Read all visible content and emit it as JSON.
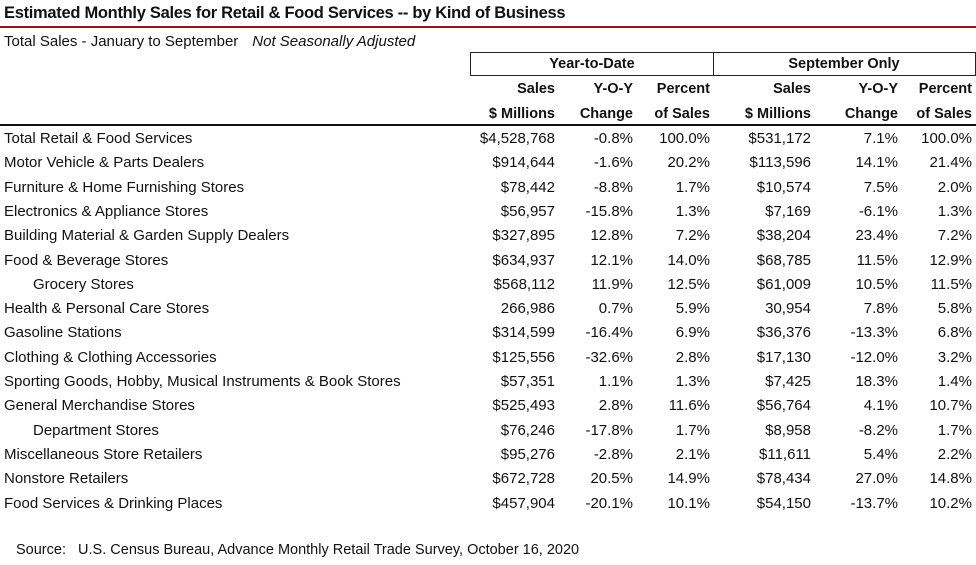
{
  "title": "Estimated Monthly Sales for Retail & Food Services -- by Kind of Business",
  "subtitle": "Total Sales - January to September",
  "subtitle_note": "Not Seasonally Adjusted",
  "colors": {
    "title_rule": "#8b1a1a"
  },
  "groups": [
    "Year-to-Date",
    "September Only"
  ],
  "headers": [
    {
      "line1": "Sales",
      "line2": "$ Millions"
    },
    {
      "line1": "Y-O-Y",
      "line2": "Change"
    },
    {
      "line1": "Percent",
      "line2": "of Sales"
    },
    {
      "line1": "Sales",
      "line2": "$ Millions"
    },
    {
      "line1": "Y-O-Y",
      "line2": "Change"
    },
    {
      "line1": "Percent",
      "line2": "of Sales"
    }
  ],
  "rows": [
    {
      "name": "Total Retail & Food Services",
      "indent": false,
      "v": [
        "$4,528,768",
        "-0.8%",
        "100.0%",
        "$531,172",
        "7.1%",
        "100.0%"
      ]
    },
    {
      "name": "Motor Vehicle & Parts Dealers",
      "indent": false,
      "v": [
        "$914,644",
        "-1.6%",
        "20.2%",
        "$113,596",
        "14.1%",
        "21.4%"
      ]
    },
    {
      "name": "Furniture & Home Furnishing Stores",
      "indent": false,
      "v": [
        "$78,442",
        "-8.8%",
        "1.7%",
        "$10,574",
        "7.5%",
        "2.0%"
      ]
    },
    {
      "name": "Electronics & Appliance Stores",
      "indent": false,
      "v": [
        "$56,957",
        "-15.8%",
        "1.3%",
        "$7,169",
        "-6.1%",
        "1.3%"
      ]
    },
    {
      "name": "Building Material & Garden Supply Dealers",
      "indent": false,
      "v": [
        "$327,895",
        "12.8%",
        "7.2%",
        "$38,204",
        "23.4%",
        "7.2%"
      ]
    },
    {
      "name": "Food & Beverage Stores",
      "indent": false,
      "v": [
        "$634,937",
        "12.1%",
        "14.0%",
        "$68,785",
        "11.5%",
        "12.9%"
      ]
    },
    {
      "name": "Grocery Stores",
      "indent": true,
      "v": [
        "$568,112",
        "11.9%",
        "12.5%",
        "$61,009",
        "10.5%",
        "11.5%"
      ]
    },
    {
      "name": "Health & Personal Care Stores",
      "indent": false,
      "v": [
        "266,986",
        "0.7%",
        "5.9%",
        "30,954",
        "7.8%",
        "5.8%"
      ]
    },
    {
      "name": "Gasoline Stations",
      "indent": false,
      "v": [
        "$314,599",
        "-16.4%",
        "6.9%",
        "$36,376",
        "-13.3%",
        "6.8%"
      ]
    },
    {
      "name": "Clothing & Clothing Accessories",
      "indent": false,
      "v": [
        "$125,556",
        "-32.6%",
        "2.8%",
        "$17,130",
        "-12.0%",
        "3.2%"
      ]
    },
    {
      "name": "Sporting Goods, Hobby, Musical Instruments & Book Stores",
      "indent": false,
      "v": [
        "$57,351",
        "1.1%",
        "1.3%",
        "$7,425",
        "18.3%",
        "1.4%"
      ]
    },
    {
      "name": "General Merchandise Stores",
      "indent": false,
      "v": [
        "$525,493",
        "2.8%",
        "11.6%",
        "$56,764",
        "4.1%",
        "10.7%"
      ]
    },
    {
      "name": "Department Stores",
      "indent": true,
      "v": [
        "$76,246",
        "-17.8%",
        "1.7%",
        "$8,958",
        "-8.2%",
        "1.7%"
      ]
    },
    {
      "name": "Miscellaneous Store Retailers",
      "indent": false,
      "v": [
        "$95,276",
        "-2.8%",
        "2.1%",
        "$11,611",
        "5.4%",
        "2.2%"
      ]
    },
    {
      "name": "Nonstore Retailers",
      "indent": false,
      "v": [
        "$672,728",
        "20.5%",
        "14.9%",
        "$78,434",
        "27.0%",
        "14.8%"
      ]
    },
    {
      "name": "Food Services & Drinking Places",
      "indent": false,
      "v": [
        "$457,904",
        "-20.1%",
        "10.1%",
        "$54,150",
        "-13.7%",
        "10.2%"
      ]
    }
  ],
  "source": "Source:   U.S. Census Bureau, Advance Monthly Retail Trade Survey, October 16, 2020"
}
